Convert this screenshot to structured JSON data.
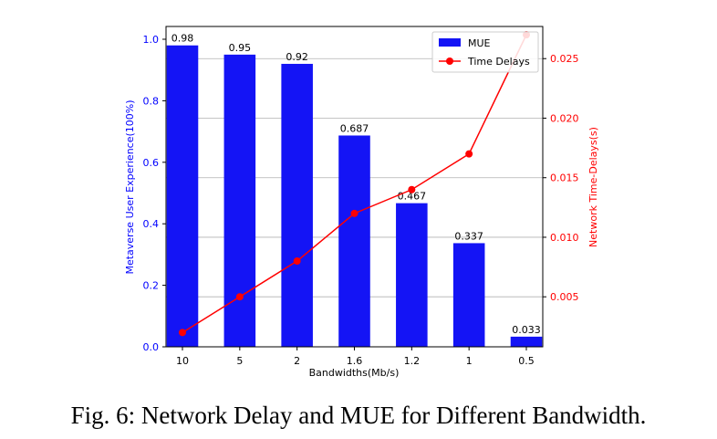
{
  "caption": "Fig. 6: Network Delay and MUE for Different Bandwidth.",
  "chart_data": {
    "type": "bar",
    "categories": [
      "10",
      "5",
      "2",
      "1.6",
      "1.2",
      "1",
      "0.5"
    ],
    "xlabel": "Bandwidths(Mb/s)",
    "ylabel_left": "Metaverse User Experience(100%)",
    "ylabel_right": "Network Time-Delays(s)",
    "ylim_left": [
      0,
      1.0
    ],
    "ylim_right": [
      0.0008,
      0.0277
    ],
    "yticks_left": [
      "0.0",
      "0.2",
      "0.4",
      "0.6",
      "0.8",
      "1.0"
    ],
    "yticks_right": [
      "0.005",
      "0.010",
      "0.015",
      "0.020",
      "0.025"
    ],
    "series": [
      {
        "name": "MUE",
        "type": "bar",
        "axis": "left",
        "color": "#1414f5",
        "values": [
          0.98,
          0.95,
          0.92,
          0.687,
          0.467,
          0.337,
          0.033
        ],
        "labels": [
          "0.98",
          "0.95",
          "0.92",
          "0.687",
          "0.467",
          "0.337",
          "0.033"
        ]
      },
      {
        "name": "Time Delays",
        "type": "line",
        "axis": "right",
        "color": "#ff0000",
        "values": [
          0.002,
          0.005,
          0.008,
          0.012,
          0.014,
          0.017,
          0.027
        ]
      }
    ],
    "grid": "horizontal (right axis)",
    "legend_position": "top-right",
    "left_axis_color": "#0000ff",
    "right_axis_color": "#ff0000"
  }
}
